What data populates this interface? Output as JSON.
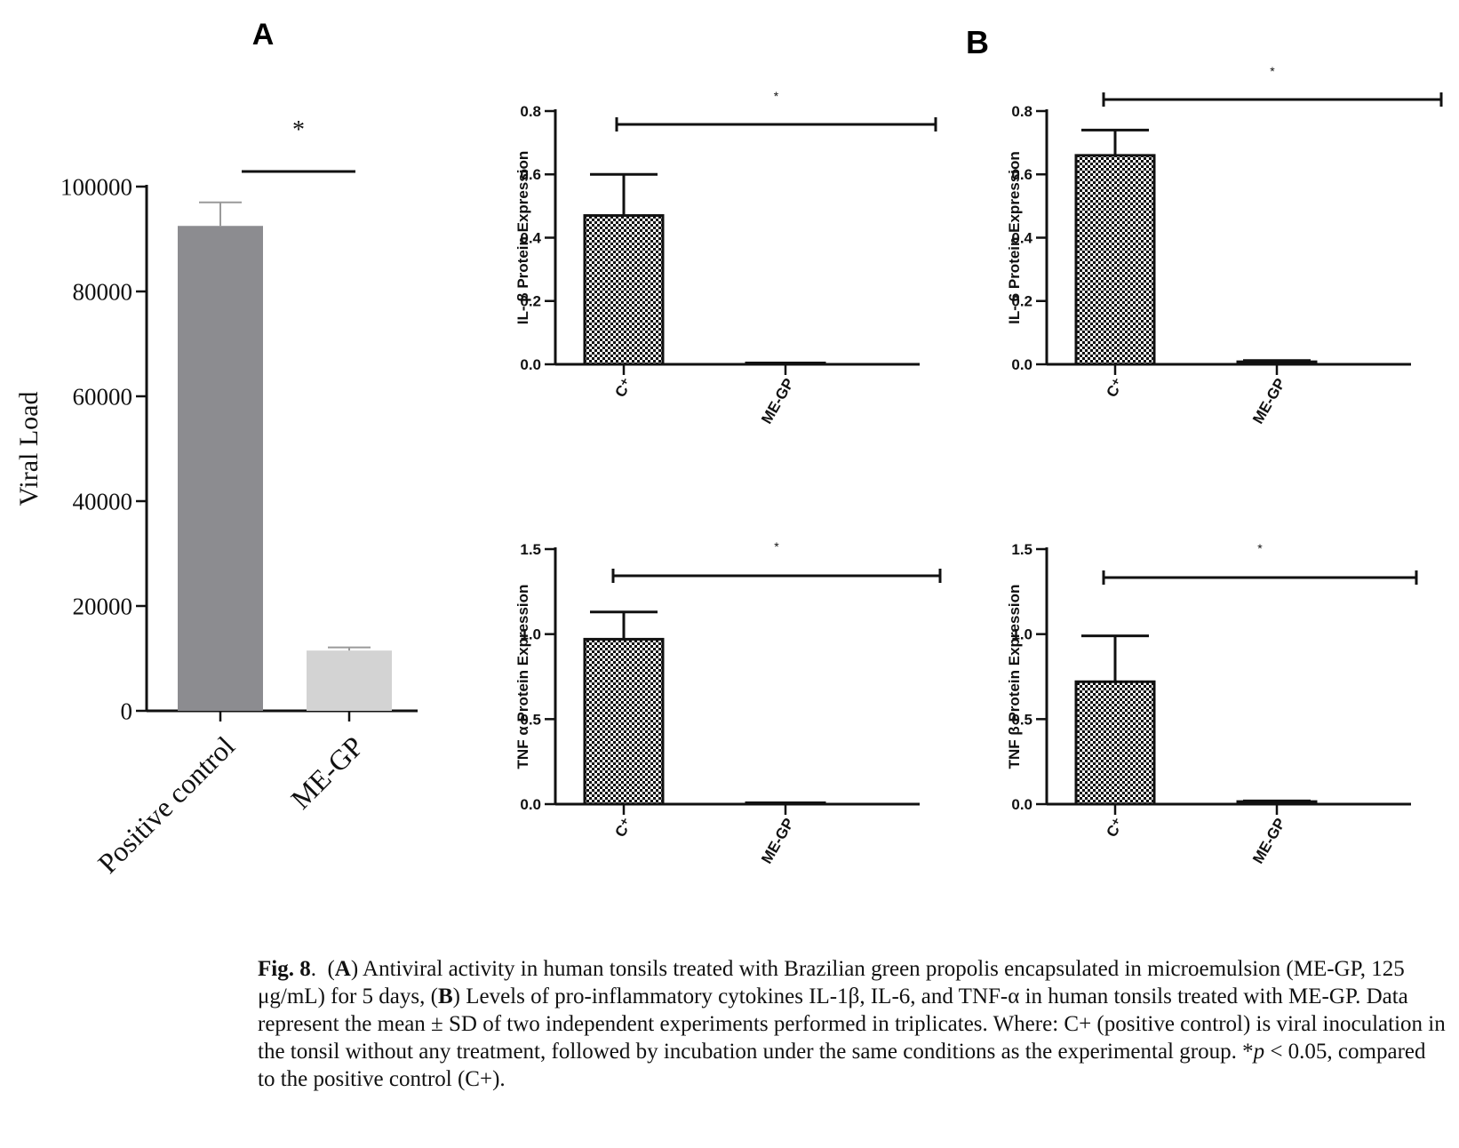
{
  "panels": {
    "A": "A",
    "B": "B"
  },
  "chart_data": [
    {
      "panel": "A",
      "type": "bar",
      "categories": [
        "Positive control",
        "ME-GP"
      ],
      "values": [
        92500,
        11500
      ],
      "errors": [
        4500,
        600
      ],
      "colors": [
        "#8c8c90",
        "#d3d3d3"
      ],
      "ylabel": "Viral Load",
      "ylim": [
        0,
        100000
      ],
      "yticks": [
        "0",
        "20000",
        "40000",
        "60000",
        "80000",
        "100000"
      ],
      "significance": "*"
    },
    {
      "panel": "B",
      "type": "bar",
      "categories": [
        "C⁺",
        "ME-GP"
      ],
      "values": [
        0.47,
        0.003
      ],
      "errors": [
        0.13,
        0.0
      ],
      "ylabel": "IL- β Protein Expression",
      "ylim": [
        0,
        0.8
      ],
      "yticks": [
        "0.0",
        "0.2",
        "0.4",
        "0.6",
        "0.8"
      ],
      "significance": "*"
    },
    {
      "panel": "B",
      "type": "bar",
      "categories": [
        "C⁺",
        "ME-GP"
      ],
      "values": [
        0.66,
        0.008
      ],
      "errors": [
        0.08,
        0.004
      ],
      "ylabel": "IL- 6 Protein Expression",
      "ylim": [
        0,
        0.8
      ],
      "yticks": [
        "0.0",
        "0.2",
        "0.4",
        "0.6",
        "0.8"
      ],
      "significance": "*"
    },
    {
      "panel": "B",
      "type": "bar",
      "categories": [
        "C⁺",
        "ME-GP"
      ],
      "values": [
        0.97,
        0.005
      ],
      "errors": [
        0.16,
        0.0
      ],
      "ylabel": "TNF α Protein Expression",
      "ylim": [
        0,
        1.5
      ],
      "yticks": [
        "0.0",
        "0.5",
        "1.0",
        "1.5"
      ],
      "significance": "*"
    },
    {
      "panel": "B",
      "type": "bar",
      "categories": [
        "C⁺",
        "ME-GP"
      ],
      "values": [
        0.72,
        0.015
      ],
      "errors": [
        0.27,
        0.004
      ],
      "ylabel": "TNF β Protein Expression",
      "ylim": [
        0,
        1.5
      ],
      "yticks": [
        "0.0",
        "0.5",
        "1.0",
        "1.5"
      ],
      "significance": "*"
    }
  ],
  "caption": {
    "label": "Fig. 8",
    "part_a_open": "(",
    "part_a_letter": "A",
    "part_a_text": ") Antiviral activity in human tonsils treated with Brazilian green propolis encapsulated in microemulsion (ME-GP, 125 μg/mL) for 5 days, (",
    "part_b_letter": "B",
    "part_b_text": ") Levels of pro-inflammatory cytokines IL-1β, IL-6, and TNF-α in human tonsils treated with ME-GP. Data represent the mean ± SD of two independent experiments performed in triplicates. Where: C+ (positive control) is viral inoculation in the tonsil without any treatment, followed by incubation under the same conditions as the experimental group. *",
    "p_symbol": "p",
    "tail_text": " < 0.05, compared to the positive control (C+)."
  }
}
